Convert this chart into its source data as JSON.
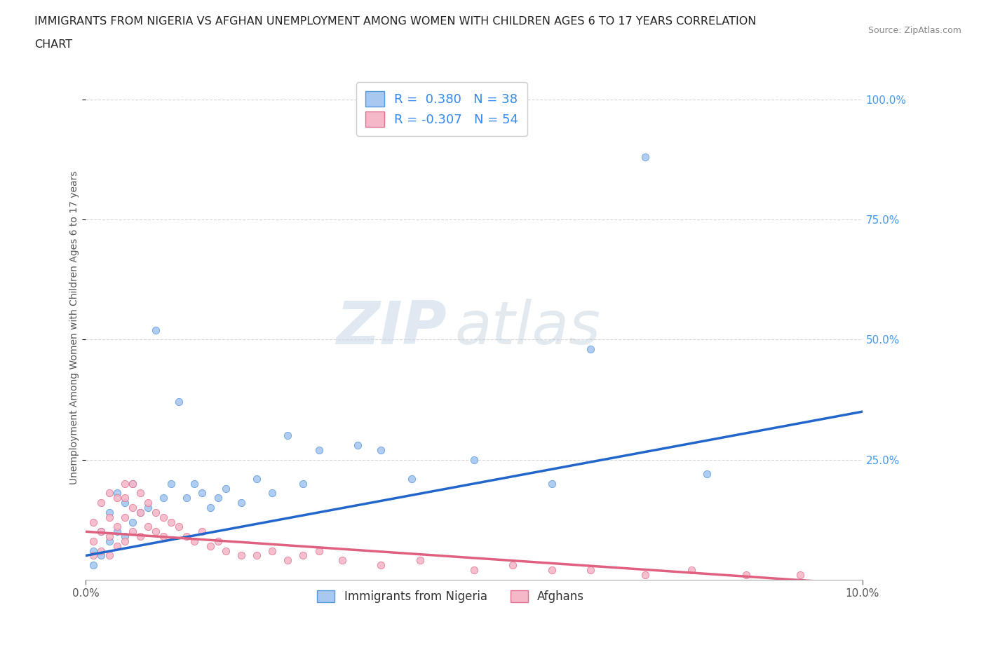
{
  "title_line1": "IMMIGRANTS FROM NIGERIA VS AFGHAN UNEMPLOYMENT AMONG WOMEN WITH CHILDREN AGES 6 TO 17 YEARS CORRELATION",
  "title_line2": "CHART",
  "source": "Source: ZipAtlas.com",
  "ylabel": "Unemployment Among Women with Children Ages 6 to 17 years",
  "x_min": 0.0,
  "x_max": 0.1,
  "y_min": 0.0,
  "y_max": 1.05,
  "nigeria_color": "#a8c8f0",
  "nigeria_edge_color": "#5599dd",
  "afghan_color": "#f5b8c8",
  "afghan_edge_color": "#e07090",
  "nigeria_trend_color": "#2266cc",
  "afghan_trend_color": "#e06080",
  "r_nigeria": 0.38,
  "n_nigeria": 38,
  "r_afghan": -0.307,
  "n_afghan": 54,
  "nigeria_scatter_x": [
    0.001,
    0.001,
    0.002,
    0.002,
    0.003,
    0.003,
    0.004,
    0.004,
    0.005,
    0.005,
    0.006,
    0.006,
    0.007,
    0.008,
    0.009,
    0.01,
    0.011,
    0.012,
    0.013,
    0.014,
    0.015,
    0.016,
    0.017,
    0.018,
    0.02,
    0.022,
    0.024,
    0.026,
    0.028,
    0.03,
    0.035,
    0.038,
    0.042,
    0.05,
    0.06,
    0.065,
    0.072,
    0.08
  ],
  "nigeria_scatter_y": [
    0.03,
    0.06,
    0.05,
    0.1,
    0.08,
    0.14,
    0.1,
    0.18,
    0.09,
    0.16,
    0.12,
    0.2,
    0.14,
    0.15,
    0.52,
    0.17,
    0.2,
    0.37,
    0.17,
    0.2,
    0.18,
    0.15,
    0.17,
    0.19,
    0.16,
    0.21,
    0.18,
    0.3,
    0.2,
    0.27,
    0.28,
    0.27,
    0.21,
    0.25,
    0.2,
    0.48,
    0.88,
    0.22
  ],
  "afghan_scatter_x": [
    0.001,
    0.001,
    0.001,
    0.002,
    0.002,
    0.002,
    0.003,
    0.003,
    0.003,
    0.003,
    0.004,
    0.004,
    0.004,
    0.005,
    0.005,
    0.005,
    0.005,
    0.006,
    0.006,
    0.006,
    0.007,
    0.007,
    0.007,
    0.008,
    0.008,
    0.009,
    0.009,
    0.01,
    0.01,
    0.011,
    0.012,
    0.013,
    0.014,
    0.015,
    0.016,
    0.017,
    0.018,
    0.02,
    0.022,
    0.024,
    0.026,
    0.028,
    0.03,
    0.033,
    0.038,
    0.043,
    0.05,
    0.055,
    0.06,
    0.065,
    0.072,
    0.078,
    0.085,
    0.092
  ],
  "afghan_scatter_y": [
    0.05,
    0.08,
    0.12,
    0.06,
    0.1,
    0.16,
    0.05,
    0.09,
    0.13,
    0.18,
    0.07,
    0.11,
    0.17,
    0.08,
    0.13,
    0.17,
    0.2,
    0.1,
    0.15,
    0.2,
    0.09,
    0.14,
    0.18,
    0.11,
    0.16,
    0.1,
    0.14,
    0.09,
    0.13,
    0.12,
    0.11,
    0.09,
    0.08,
    0.1,
    0.07,
    0.08,
    0.06,
    0.05,
    0.05,
    0.06,
    0.04,
    0.05,
    0.06,
    0.04,
    0.03,
    0.04,
    0.02,
    0.03,
    0.02,
    0.02,
    0.01,
    0.02,
    0.01,
    0.01
  ],
  "watermark_zip": "ZIP",
  "watermark_atlas": "atlas",
  "background_color": "#ffffff",
  "grid_color": "#cccccc",
  "legend_label_nigeria": "Immigrants from Nigeria",
  "legend_label_afghan": "Afghans"
}
